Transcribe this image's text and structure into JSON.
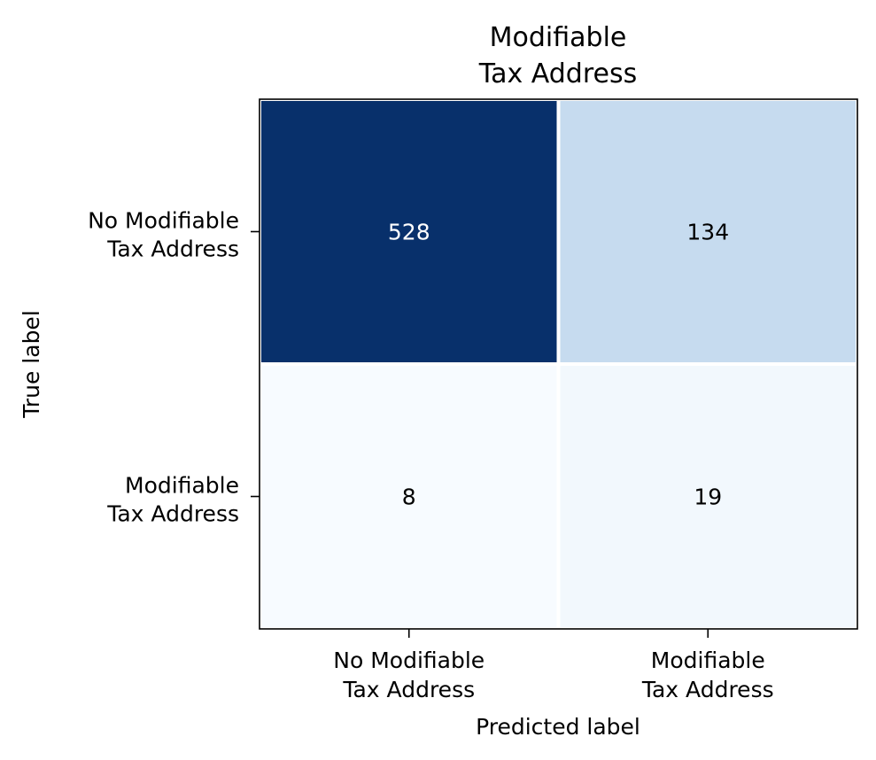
{
  "chart_data": {
    "type": "heatmap",
    "title": [
      "Modifiable",
      "Tax Address"
    ],
    "xlabel": "Predicted label",
    "ylabel": "True label",
    "x_categories": [
      [
        "No Modifiable",
        "Tax Address"
      ],
      [
        "Modifiable",
        "Tax Address"
      ]
    ],
    "y_categories": [
      [
        "No Modifiable",
        "Tax Address"
      ],
      [
        "Modifiable",
        "Tax Address"
      ]
    ],
    "matrix": [
      [
        528,
        134
      ],
      [
        8,
        19
      ]
    ],
    "colormap": "Blues",
    "colors": {
      "528": "#08306b",
      "134": "#c6dbef",
      "8": "#f7fbff",
      "19": "#f2f8fd"
    },
    "text_colors": {
      "dark": "#ffffff",
      "light": "#000000"
    }
  }
}
